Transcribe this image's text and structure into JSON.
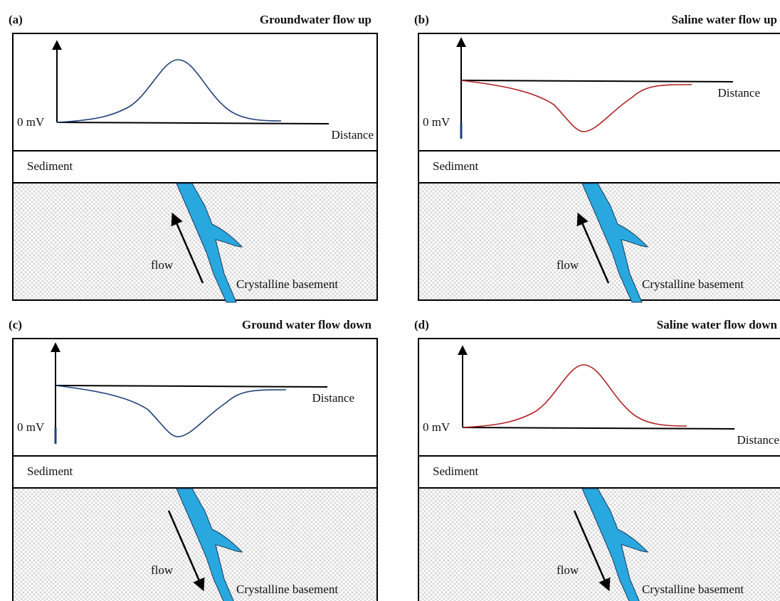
{
  "panels": [
    {
      "label": "(a)",
      "title": "Groundwater flow up"
    },
    {
      "label": "(b)",
      "title": "Saline water flow up"
    },
    {
      "label": "(c)",
      "title": "Ground water flow down"
    },
    {
      "label": "(d)",
      "title": "Saline water flow down"
    }
  ],
  "zero_label": "0 mV",
  "axis_label": "Distance",
  "sediment": "Sediment",
  "flow": "flow",
  "basement": "Crystalline basement"
}
